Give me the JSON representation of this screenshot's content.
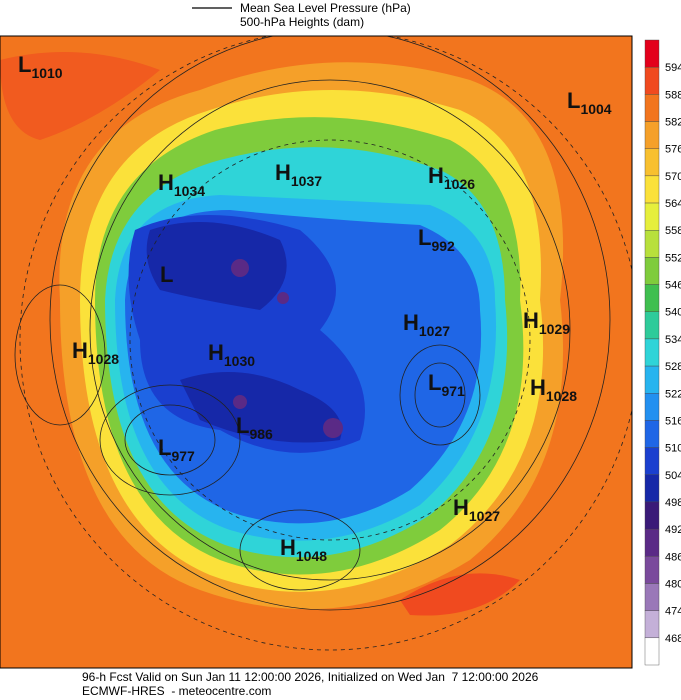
{
  "header": {
    "legend": [
      "Mean Sea Level Pressure (hPa)",
      "500-hPa Heights (dam)"
    ]
  },
  "colorbar": {
    "levels": [
      594,
      588,
      582,
      576,
      570,
      564,
      558,
      552,
      546,
      540,
      534,
      528,
      522,
      516,
      510,
      504,
      498,
      492,
      486,
      480,
      474,
      468
    ],
    "colors": [
      "#e3001b",
      "#f04a1f",
      "#f2751e",
      "#f5a029",
      "#f8c02f",
      "#fbe13a",
      "#e6ef3c",
      "#b8e03c",
      "#7fcc3c",
      "#3fbf4f",
      "#2ecb9a",
      "#2fd4d8",
      "#27b4ef",
      "#2290f0",
      "#1f66e6",
      "#1a3fcf",
      "#1628a8",
      "#3a1a78",
      "#5a2a86",
      "#7a4a9c",
      "#9a78b8",
      "#c4b0d8",
      "#ffffff"
    ]
  },
  "centers": [
    {
      "letter": "L",
      "value": 1010
    },
    {
      "letter": "L",
      "value": 1004
    },
    {
      "letter": "H",
      "value": 1034
    },
    {
      "letter": "H",
      "value": 1037
    },
    {
      "letter": "H",
      "value": 1026
    },
    {
      "letter": "L",
      "value": 992
    },
    {
      "letter": "L"
    },
    {
      "letter": "H",
      "value": 1027
    },
    {
      "letter": "H",
      "value": 1029
    },
    {
      "letter": "H",
      "value": 1028
    },
    {
      "letter": "H",
      "value": 1030
    },
    {
      "letter": "L",
      "value": 971
    },
    {
      "letter": "H",
      "value": 1028
    },
    {
      "letter": "L",
      "value": 986
    },
    {
      "letter": "L",
      "value": 977
    },
    {
      "letter": "H",
      "value": 1027
    },
    {
      "letter": "H",
      "value": 1048
    }
  ],
  "footer": [
    "96-h Fcst Valid on Sun Jan 11 12:00:00 2026, Initialized on Wed Jan  7 12:00:00 2026",
    "ECMWF-HRES  - meteocentre.com"
  ]
}
